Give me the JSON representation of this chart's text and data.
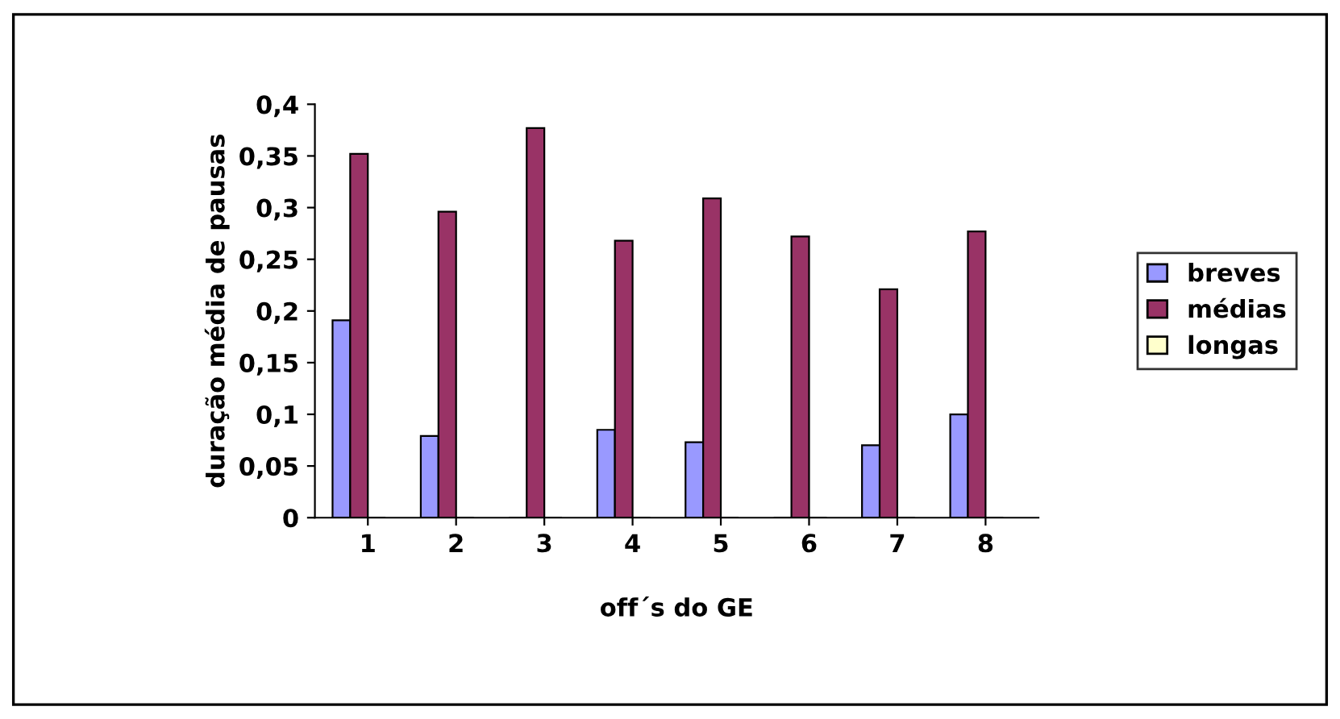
{
  "chart_data": {
    "type": "bar",
    "xlabel": "off´s do GE",
    "ylabel": "duração média de pausas",
    "categories": [
      "1",
      "2",
      "3",
      "4",
      "5",
      "6",
      "7",
      "8"
    ],
    "series": [
      {
        "name": "breves",
        "color": "#9999ff",
        "values": [
          0.191,
          0.079,
          0,
          0.085,
          0.073,
          0,
          0.07,
          0.1
        ]
      },
      {
        "name": "médias",
        "color": "#993366",
        "values": [
          0.352,
          0.296,
          0.377,
          0.268,
          0.309,
          0.272,
          0.221,
          0.277
        ]
      },
      {
        "name": "longas",
        "color": "#ffffcc",
        "values": [
          0,
          0,
          0,
          0,
          0,
          0,
          0,
          0
        ]
      }
    ],
    "ylim": [
      0,
      0.4
    ],
    "yticks": [
      {
        "value": 0,
        "label": "0"
      },
      {
        "value": 0.05,
        "label": "0,05"
      },
      {
        "value": 0.1,
        "label": "0,1"
      },
      {
        "value": 0.15,
        "label": "0,15"
      },
      {
        "value": 0.2,
        "label": "0,2"
      },
      {
        "value": 0.25,
        "label": "0,25"
      },
      {
        "value": 0.3,
        "label": "0,3"
      },
      {
        "value": 0.35,
        "label": "0,35"
      },
      {
        "value": 0.4,
        "label": "0,4"
      }
    ],
    "grid": false,
    "legend": "right"
  }
}
